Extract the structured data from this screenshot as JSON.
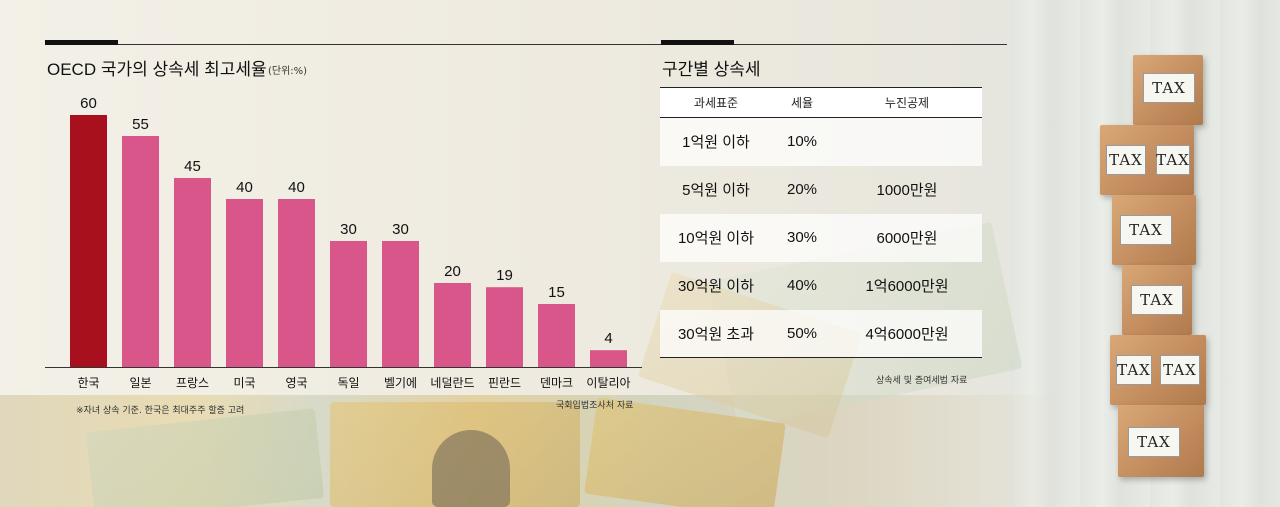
{
  "left": {
    "title": "OECD 국가의 상속세 최고세율",
    "unit": "(단위:%)",
    "footnote": "※자녀 상속 기준. 한국은 최대주주 할증 고려",
    "source": "국회입법조사처 자료"
  },
  "chart_data": {
    "type": "bar",
    "title": "OECD 국가의 상속세 최고세율",
    "categories": [
      "한국",
      "일본",
      "프랑스",
      "미국",
      "영국",
      "독일",
      "벨기에",
      "네덜란드",
      "핀란드",
      "덴마크",
      "이탈리아"
    ],
    "values": [
      60,
      55,
      45,
      40,
      40,
      30,
      30,
      20,
      19,
      15,
      4
    ],
    "ylim": [
      0,
      60
    ],
    "grid": false,
    "colors": {
      "highlight": "#a7101c",
      "default": "#d9568a"
    }
  },
  "right": {
    "title": "구간별 상속세",
    "headers": [
      "과세표준",
      "세율",
      "누진공제"
    ],
    "rows": [
      [
        "1억원 이하",
        "10%",
        ""
      ],
      [
        "5억원 이하",
        "20%",
        "1000만원"
      ],
      [
        "10억원 이하",
        "30%",
        "6000만원"
      ],
      [
        "30억원 이하",
        "40%",
        "1억6000만원"
      ],
      [
        "30억원 초과",
        "50%",
        "4억6000만원"
      ]
    ],
    "source": "상속세 및 증여세법 자료"
  },
  "blocks": {
    "text": "TAX"
  }
}
